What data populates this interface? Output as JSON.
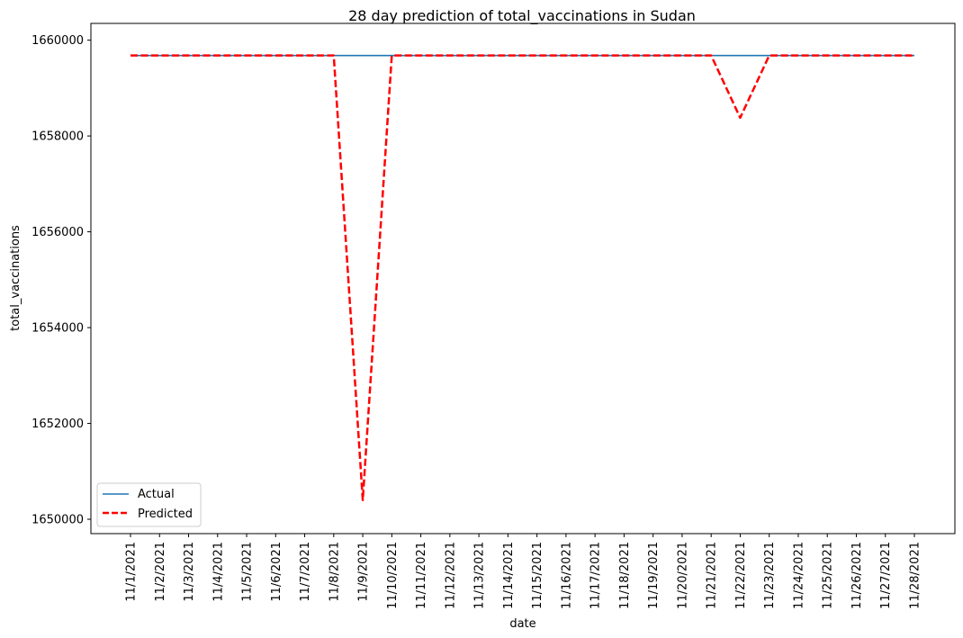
{
  "chart_data": {
    "type": "line",
    "title": "28 day prediction of total_vaccinations in Sudan",
    "xlabel": "date",
    "ylabel": "total_vaccinations",
    "categories": [
      "11/1/2021",
      "11/2/2021",
      "11/3/2021",
      "11/4/2021",
      "11/5/2021",
      "11/6/2021",
      "11/7/2021",
      "11/8/2021",
      "11/9/2021",
      "11/10/2021",
      "11/11/2021",
      "11/12/2021",
      "11/13/2021",
      "11/14/2021",
      "11/15/2021",
      "11/16/2021",
      "11/17/2021",
      "11/18/2021",
      "11/19/2021",
      "11/20/2021",
      "11/21/2021",
      "11/22/2021",
      "11/23/2021",
      "11/24/2021",
      "11/25/2021",
      "11/26/2021",
      "11/27/2021",
      "11/28/2021"
    ],
    "ylim": [
      1649700,
      1660350
    ],
    "yticks": [
      1650000,
      1652000,
      1654000,
      1656000,
      1658000,
      1660000
    ],
    "grid": false,
    "legend_position": "lower-left",
    "series": [
      {
        "name": "Actual",
        "color": "#1f77b4",
        "style": "solid",
        "values": [
          1659680,
          1659680,
          1659680,
          1659680,
          1659680,
          1659680,
          1659680,
          1659680,
          1659680,
          1659680,
          1659680,
          1659680,
          1659680,
          1659680,
          1659680,
          1659680,
          1659680,
          1659680,
          1659680,
          1659680,
          1659680,
          1659680,
          1659680,
          1659680,
          1659680,
          1659680,
          1659680,
          1659680
        ]
      },
      {
        "name": "Predicted",
        "color": "#ff0000",
        "style": "dashed",
        "values": [
          1659680,
          1659680,
          1659680,
          1659680,
          1659680,
          1659680,
          1659680,
          1659680,
          1650400,
          1659680,
          1659680,
          1659680,
          1659680,
          1659680,
          1659680,
          1659680,
          1659680,
          1659680,
          1659680,
          1659680,
          1659680,
          1658380,
          1659680,
          1659680,
          1659680,
          1659680,
          1659680,
          1659680
        ]
      }
    ]
  }
}
